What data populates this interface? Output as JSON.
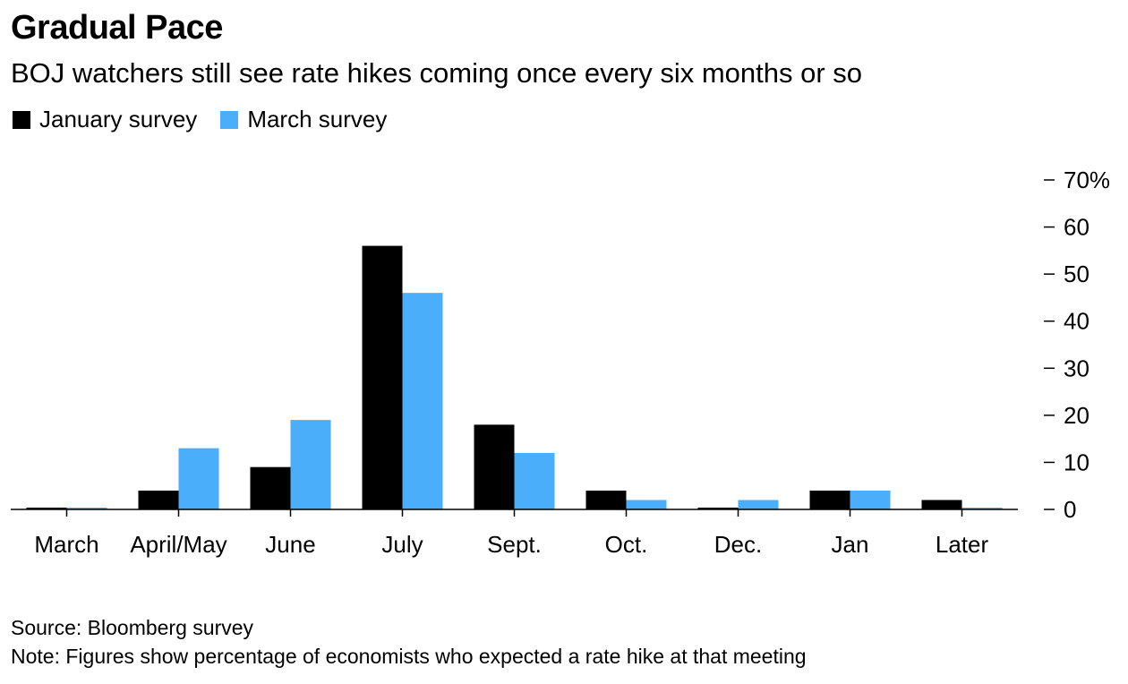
{
  "title": "Gradual Pace",
  "subtitle": "BOJ watchers still see rate hikes coming once every six months or so",
  "legend": [
    {
      "label": "January survey",
      "color": "#000000"
    },
    {
      "label": "March survey",
      "color": "#4aaefa"
    }
  ],
  "source": "Source: Bloomberg survey",
  "note": "Note: Figures show percentage of economists who expected a rate hike at that meeting",
  "chart_data": {
    "type": "bar",
    "categories": [
      "March",
      "April/May",
      "June",
      "July",
      "Sept.",
      "Oct.",
      "Dec.",
      "Jan",
      "Later"
    ],
    "series": [
      {
        "name": "January survey",
        "color": "#000000",
        "values": [
          0,
          4,
          9,
          56,
          18,
          4,
          0,
          4,
          2
        ]
      },
      {
        "name": "March survey",
        "color": "#4aaefa",
        "values": [
          0,
          13,
          19,
          46,
          12,
          2,
          2,
          4,
          0
        ]
      }
    ],
    "y_ticks": [
      0,
      10,
      20,
      30,
      40,
      50,
      60,
      70
    ],
    "y_tick_labels": [
      "0",
      "10",
      "20",
      "30",
      "40",
      "50",
      "60",
      "70%"
    ],
    "ylim": [
      0,
      70
    ],
    "y_axis_position": "right",
    "grid": false
  }
}
